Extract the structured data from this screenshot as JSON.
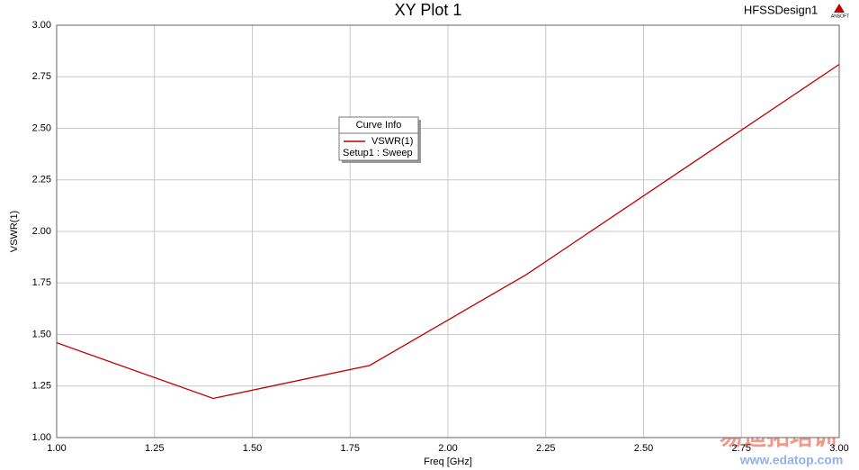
{
  "chart_data": {
    "type": "line",
    "title": "XY Plot 1",
    "design_name": "HFSSDesign1",
    "logo": "ANSOFT",
    "x_label": "Freq [GHz]",
    "y_label": "VSWR(1)",
    "legend_title": "Curve Info",
    "legend_subtitle": "Setup1 : Sweep",
    "x": [
      1.0,
      1.4,
      1.8,
      2.2,
      2.6,
      3.0
    ],
    "series": [
      {
        "name": "VSWR(1)",
        "color": "#c00000",
        "values": [
          1.46,
          1.19,
          1.35,
          1.79,
          2.3,
          2.81
        ]
      }
    ],
    "xlim": [
      1,
      3
    ],
    "ylim": [
      1,
      3
    ],
    "xticks": [
      {
        "value": 1,
        "label": "1.00"
      },
      1.25,
      {
        "value": 1.5,
        "label": "1.50"
      },
      1.75,
      {
        "value": 2,
        "label": "2.00"
      },
      2.25,
      {
        "value": 2.5,
        "label": "2.50"
      },
      2.75,
      {
        "value": 3,
        "label": "3.00"
      }
    ],
    "yticks": [
      {
        "value": 1,
        "label": "1.00"
      },
      1.25,
      {
        "value": 1.5,
        "label": "1.50"
      },
      1.75,
      {
        "value": 2,
        "label": "2.00"
      },
      2.25,
      {
        "value": 2.5,
        "label": "2.50"
      },
      2.75,
      {
        "value": 3,
        "label": "3.00"
      }
    ],
    "grid": true
  },
  "watermark": {
    "text": "易迪拓培训",
    "url": "www.edatop.com"
  }
}
